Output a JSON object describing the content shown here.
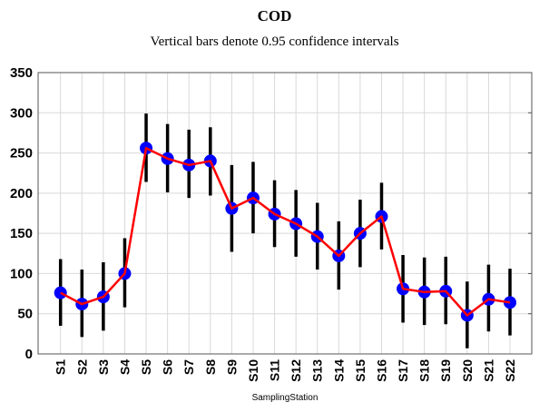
{
  "chart_data": {
    "type": "line",
    "title": "COD",
    "subtitle": "Vertical bars denote 0.95 confidence intervals",
    "xlabel": "SamplingStation",
    "ylabel": "",
    "ylim": [
      0,
      350
    ],
    "yticks": [
      0,
      50,
      100,
      150,
      200,
      250,
      300,
      350
    ],
    "grid": true,
    "categories": [
      "S1",
      "S2",
      "S3",
      "S4",
      "S5",
      "S6",
      "S7",
      "S8",
      "S9",
      "S10",
      "S11",
      "S12",
      "S13",
      "S14",
      "S15",
      "S16",
      "S17",
      "S18",
      "S19",
      "S20",
      "S21",
      "S22"
    ],
    "values": [
      76,
      62,
      71,
      100,
      256,
      243,
      235,
      240,
      181,
      194,
      174,
      162,
      146,
      122,
      150,
      171,
      81,
      77,
      78,
      48,
      68,
      64
    ],
    "ci_upper": [
      118,
      105,
      114,
      144,
      299,
      286,
      279,
      282,
      235,
      239,
      216,
      204,
      188,
      165,
      192,
      213,
      123,
      120,
      121,
      90,
      111,
      106
    ],
    "ci_lower": [
      35,
      21,
      29,
      58,
      214,
      201,
      194,
      197,
      127,
      150,
      133,
      121,
      105,
      80,
      108,
      130,
      39,
      36,
      37,
      7,
      28,
      23
    ],
    "colors": {
      "line": "#ff0000",
      "marker": "#0000ff",
      "errorbar": "#000000",
      "grid": "#d9d9d9"
    }
  }
}
